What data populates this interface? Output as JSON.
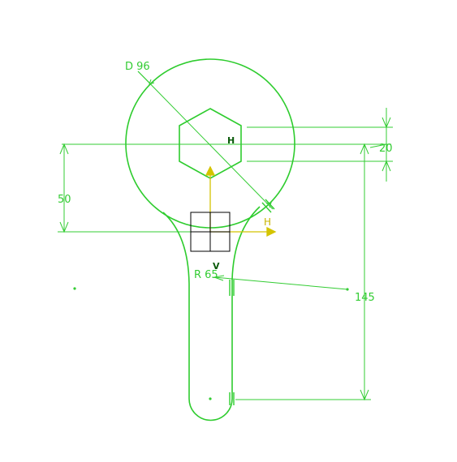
{
  "colors": {
    "geometry": "#2ecc2e",
    "dimension": "#33cc33",
    "axis": "#d4c400",
    "axis_label": "#c8b400",
    "frame": "#000000",
    "constraint_tag": "#0a5a0a",
    "background": "#ffffff"
  },
  "dimensions": {
    "diameter": "D 96",
    "radius": "R 65",
    "hex_span": "20",
    "offset": "50",
    "length": "145"
  },
  "constraint_tags": {
    "horizontal": "H",
    "vertical": "V"
  },
  "axes": {
    "h_label": "H"
  }
}
